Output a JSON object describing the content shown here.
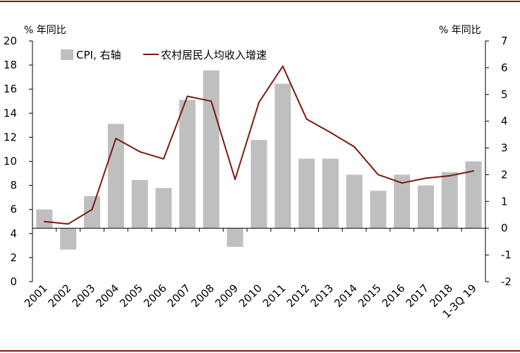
{
  "chart_data": {
    "type": "bar",
    "left_axis_unit": "% 年同比",
    "right_axis_unit": "% 年同比",
    "categories": [
      "2001",
      "2002",
      "2003",
      "2004",
      "2005",
      "2006",
      "2007",
      "2008",
      "2009",
      "2010",
      "2011",
      "2012",
      "2013",
      "2014",
      "2015",
      "2016",
      "2017",
      "2018",
      "1-3Q 19"
    ],
    "series": [
      {
        "name": "CPI, 右轴",
        "type": "bar",
        "axis": "right",
        "color": "#bfbfbf",
        "values": [
          0.7,
          -0.8,
          1.2,
          3.9,
          1.8,
          1.5,
          4.8,
          5.9,
          -0.7,
          3.3,
          5.4,
          2.6,
          2.6,
          2.0,
          1.4,
          2.0,
          1.6,
          2.1,
          2.5
        ]
      },
      {
        "name": "农村居民人均收入增速",
        "type": "line",
        "axis": "left",
        "color": "#7b1a10",
        "values": [
          5.0,
          4.8,
          6.0,
          11.9,
          10.8,
          10.2,
          15.4,
          15.0,
          8.5,
          14.9,
          17.9,
          13.5,
          12.4,
          11.2,
          8.9,
          8.2,
          8.6,
          8.8,
          9.2
        ]
      }
    ],
    "left_axis": {
      "min": 0,
      "max": 20,
      "step": 2
    },
    "right_axis": {
      "min": -2,
      "max": 7,
      "step": 1
    },
    "grid": false,
    "legend_position": "top-left"
  }
}
